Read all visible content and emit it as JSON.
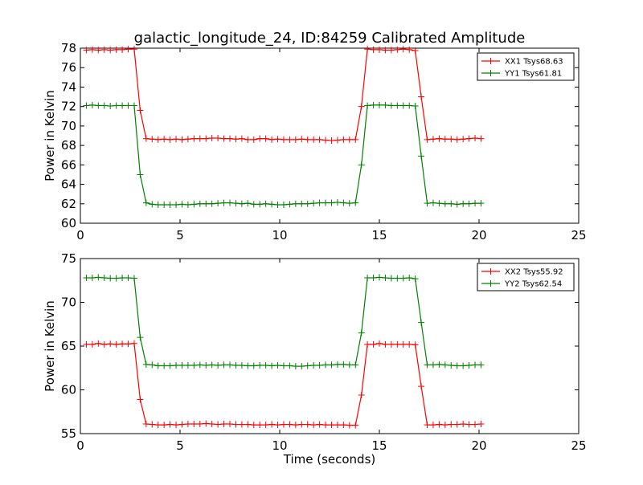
{
  "figure": {
    "title": "galactic_longitude_24, ID:84259 Calibrated Amplitude"
  },
  "chart_data": [
    {
      "type": "line",
      "title": "galactic_longitude_24, ID:84259 Calibrated Amplitude",
      "xlabel": "",
      "ylabel": "Power in Kelvin",
      "xlim": [
        0,
        25
      ],
      "ylim": [
        60,
        78
      ],
      "xticks": [
        0,
        5,
        10,
        15,
        20,
        25
      ],
      "yticks": [
        60,
        62,
        64,
        66,
        68,
        70,
        72,
        74,
        76,
        78
      ],
      "grid": false,
      "legend": "top-right",
      "marker": "+",
      "x": [
        0.3,
        0.6,
        0.9,
        1.2,
        1.5,
        1.8,
        2.1,
        2.4,
        2.7,
        3.0,
        3.3,
        3.6,
        3.9,
        4.2,
        4.5,
        4.8,
        5.1,
        5.4,
        5.7,
        6.0,
        6.3,
        6.6,
        6.9,
        7.2,
        7.5,
        7.8,
        8.1,
        8.4,
        8.7,
        9.0,
        9.3,
        9.6,
        9.9,
        10.2,
        10.5,
        10.8,
        11.1,
        11.4,
        11.7,
        12.0,
        12.3,
        12.6,
        12.9,
        13.2,
        13.5,
        13.8,
        14.1,
        14.4,
        14.7,
        15.0,
        15.3,
        15.6,
        15.9,
        16.2,
        16.5,
        16.8,
        17.1,
        17.4,
        17.7,
        18.0,
        18.3,
        18.6,
        18.9,
        19.2,
        19.5,
        19.8,
        20.1
      ],
      "series": [
        {
          "name": "XX1 Tsys68.63",
          "color": "#ff0000",
          "values": [
            77.8,
            77.85,
            77.8,
            77.85,
            77.8,
            77.85,
            77.85,
            77.9,
            77.9,
            71.6,
            68.7,
            68.65,
            68.6,
            68.65,
            68.6,
            68.65,
            68.6,
            68.65,
            68.7,
            68.7,
            68.7,
            68.75,
            68.75,
            68.7,
            68.7,
            68.65,
            68.7,
            68.6,
            68.6,
            68.7,
            68.7,
            68.6,
            68.65,
            68.6,
            68.6,
            68.6,
            68.65,
            68.6,
            68.6,
            68.6,
            68.55,
            68.5,
            68.55,
            68.6,
            68.6,
            68.6,
            72.0,
            77.9,
            77.85,
            77.85,
            77.8,
            77.8,
            77.85,
            77.9,
            77.85,
            77.75,
            73.0,
            68.6,
            68.65,
            68.7,
            68.65,
            68.65,
            68.6,
            68.65,
            68.7,
            68.75,
            68.7
          ]
        },
        {
          "name": "YY1 Tsys61.81",
          "color": "#008000",
          "values": [
            72.1,
            72.15,
            72.1,
            72.1,
            72.05,
            72.1,
            72.1,
            72.1,
            72.1,
            65.0,
            62.1,
            61.95,
            61.9,
            61.9,
            61.9,
            61.9,
            61.95,
            61.9,
            61.95,
            62.0,
            62.0,
            62.0,
            62.05,
            62.1,
            62.1,
            62.05,
            62.0,
            62.05,
            61.95,
            61.95,
            62.0,
            61.95,
            61.9,
            61.9,
            61.95,
            62.0,
            62.0,
            62.0,
            62.05,
            62.1,
            62.1,
            62.1,
            62.15,
            62.1,
            62.05,
            62.1,
            66.0,
            72.1,
            72.15,
            72.15,
            72.15,
            72.1,
            72.1,
            72.1,
            72.1,
            72.05,
            66.9,
            62.05,
            62.1,
            62.05,
            62.0,
            62.0,
            61.95,
            62.0,
            62.0,
            62.05,
            62.05
          ]
        }
      ]
    },
    {
      "type": "line",
      "title": "",
      "xlabel": "Time (seconds)",
      "ylabel": "Power in Kelvin",
      "xlim": [
        0,
        25
      ],
      "ylim": [
        55,
        75
      ],
      "xticks": [
        0,
        5,
        10,
        15,
        20,
        25
      ],
      "yticks": [
        55,
        60,
        65,
        70,
        75
      ],
      "grid": false,
      "legend": "top-right",
      "marker": "+",
      "x": [
        0.3,
        0.6,
        0.9,
        1.2,
        1.5,
        1.8,
        2.1,
        2.4,
        2.7,
        3.0,
        3.3,
        3.6,
        3.9,
        4.2,
        4.5,
        4.8,
        5.1,
        5.4,
        5.7,
        6.0,
        6.3,
        6.6,
        6.9,
        7.2,
        7.5,
        7.8,
        8.1,
        8.4,
        8.7,
        9.0,
        9.3,
        9.6,
        9.9,
        10.2,
        10.5,
        10.8,
        11.1,
        11.4,
        11.7,
        12.0,
        12.3,
        12.6,
        12.9,
        13.2,
        13.5,
        13.8,
        14.1,
        14.4,
        14.7,
        15.0,
        15.3,
        15.6,
        15.9,
        16.2,
        16.5,
        16.8,
        17.1,
        17.4,
        17.7,
        18.0,
        18.3,
        18.6,
        18.9,
        19.2,
        19.5,
        19.8,
        20.1
      ],
      "series": [
        {
          "name": "XX2 Tsys55.92",
          "color": "#ff0000",
          "values": [
            65.2,
            65.2,
            65.3,
            65.2,
            65.25,
            65.2,
            65.25,
            65.25,
            65.3,
            58.9,
            56.1,
            56.05,
            56.0,
            56.0,
            56.05,
            56.0,
            56.05,
            56.1,
            56.1,
            56.1,
            56.15,
            56.1,
            56.05,
            56.1,
            56.1,
            56.05,
            56.05,
            56.05,
            56.0,
            56.0,
            56.0,
            56.05,
            56.0,
            56.05,
            56.05,
            56.0,
            56.05,
            56.05,
            56.0,
            56.05,
            56.0,
            56.0,
            56.0,
            56.0,
            55.95,
            55.95,
            59.4,
            65.2,
            65.2,
            65.3,
            65.2,
            65.2,
            65.2,
            65.2,
            65.2,
            65.15,
            60.4,
            56.0,
            56.0,
            56.05,
            56.0,
            56.05,
            56.05,
            56.1,
            56.05,
            56.05,
            56.1
          ]
        },
        {
          "name": "YY2 Tsys62.54",
          "color": "#008000",
          "values": [
            72.8,
            72.8,
            72.85,
            72.8,
            72.75,
            72.75,
            72.8,
            72.8,
            72.75,
            66.0,
            62.9,
            62.85,
            62.75,
            62.75,
            62.75,
            62.8,
            62.8,
            62.8,
            62.8,
            62.85,
            62.8,
            62.85,
            62.8,
            62.85,
            62.85,
            62.8,
            62.8,
            62.75,
            62.75,
            62.8,
            62.8,
            62.75,
            62.8,
            62.75,
            62.75,
            62.7,
            62.7,
            62.75,
            62.8,
            62.8,
            62.85,
            62.85,
            62.9,
            62.9,
            62.85,
            62.85,
            66.5,
            72.8,
            72.8,
            72.85,
            72.8,
            72.75,
            72.75,
            72.75,
            72.8,
            72.7,
            67.7,
            62.85,
            62.85,
            62.9,
            62.85,
            62.8,
            62.75,
            62.75,
            62.8,
            62.85,
            62.85
          ]
        }
      ]
    }
  ]
}
